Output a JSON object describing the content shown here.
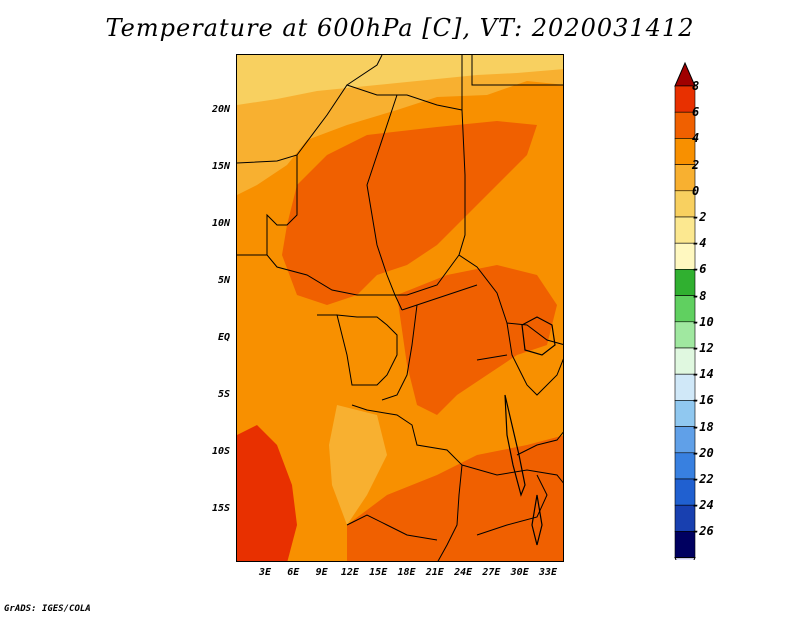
{
  "title": "Temperature at 600hPa [C], VT: 2020031412",
  "credit": "GrADS: IGES/COLA",
  "lat_labels": [
    "20N",
    "15N",
    "10N",
    "5N",
    "EQ",
    "5S",
    "10S",
    "15S"
  ],
  "lon_labels": [
    "3E",
    "6E",
    "9E",
    "12E",
    "15E",
    "18E",
    "21E",
    "24E",
    "27E",
    "30E",
    "33E"
  ],
  "colorbar": {
    "labels": [
      "8",
      "6",
      "4",
      "2",
      "0",
      "-2",
      "-4",
      "-6",
      "-8",
      "-10",
      "-12",
      "-14",
      "-16",
      "-18",
      "-20",
      "-22",
      "-24",
      "-26"
    ],
    "colors": [
      "#a00000",
      "#e83000",
      "#f06000",
      "#f89000",
      "#f8b030",
      "#f8d060",
      "#fce890",
      "#fff8c0",
      "#30b030",
      "#60d060",
      "#a0e8a0",
      "#e0f8e0",
      "#d0e8f8",
      "#90c8f0",
      "#60a0e8",
      "#3880e0",
      "#2060d0",
      "#1840b0",
      "#000060",
      "#e8e8ff"
    ]
  },
  "map": {
    "colors_used": [
      "#f89000",
      "#f06000",
      "#e83000",
      "#f8b030",
      "#f8d060"
    ]
  }
}
